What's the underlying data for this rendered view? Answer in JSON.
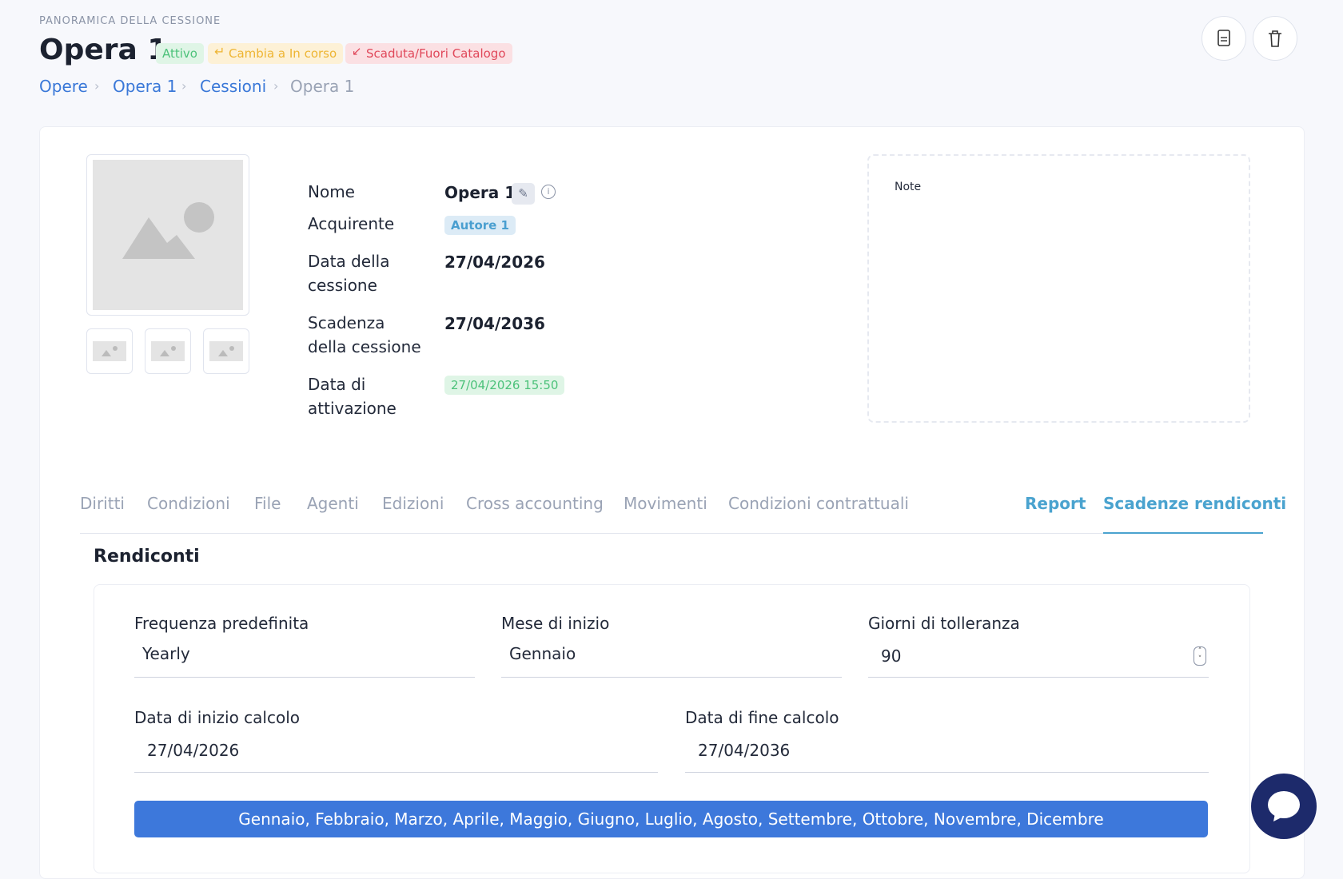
{
  "header": {
    "eyebrow": "PANORAMICA DELLA CESSIONE",
    "title": "Opera 1",
    "badges": [
      "Attivo",
      "Cambia a In corso",
      "Scaduta/Fuori Catalogo"
    ],
    "breadcrumb": [
      "Opere",
      "Opera 1",
      "Cessioni",
      "Opera 1"
    ]
  },
  "details": {
    "rows": [
      {
        "label": "Nome",
        "value": "Opera 1"
      },
      {
        "label": "Acquirente",
        "value": "Autore 1"
      },
      {
        "label": "Data della cessione",
        "value": "27/04/2026"
      },
      {
        "label": "Scadenza della cessione",
        "value": "27/04/2036"
      },
      {
        "label": "Data di attivazione",
        "value": "27/04/2026 15:50"
      }
    ]
  },
  "note": {
    "label": "Note"
  },
  "tabs": [
    "Diritti",
    "Condizioni",
    "File",
    "Agenti",
    "Edizioni",
    "Cross accounting",
    "Movimenti",
    "Condizioni contrattuali",
    "Report",
    "Scadenze rendiconti"
  ],
  "section": {
    "title": "Rendiconti",
    "fields": [
      {
        "label": "Frequenza predefinita",
        "value": "Yearly"
      },
      {
        "label": "Mese di inizio",
        "value": "Gennaio"
      },
      {
        "label": "Giorni di tolleranza",
        "value": "90"
      },
      {
        "label": "Data di inizio calcolo",
        "value": "27/04/2026"
      },
      {
        "label": "Data di fine calcolo",
        "value": "27/04/2036"
      }
    ],
    "months": "Gennaio, Febbraio, Marzo, Aprile, Maggio, Giugno, Luglio, Agosto, Settembre, Ottobre, Novembre, Dicembre"
  }
}
